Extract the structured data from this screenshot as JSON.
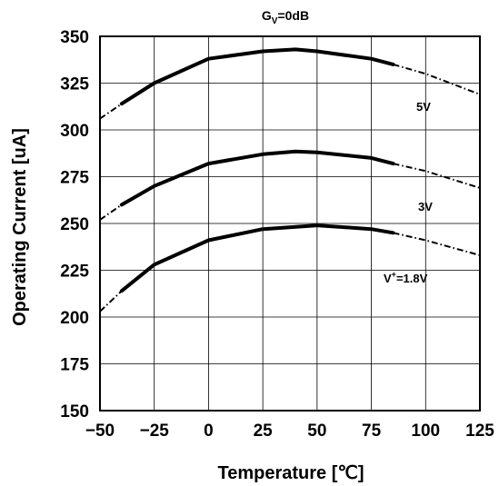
{
  "chart_data": {
    "type": "line",
    "title_main": "G",
    "title_sub": "V",
    "title_rest": "=0dB",
    "xlabel": "Temperature [℃]",
    "ylabel": "Operating Current [uA]",
    "xlim": [
      -50,
      125
    ],
    "ylim": [
      150,
      350
    ],
    "xticks": [
      -50,
      -25,
      0,
      25,
      50,
      75,
      100,
      125
    ],
    "yticks": [
      150,
      175,
      200,
      225,
      250,
      275,
      300,
      325,
      350
    ],
    "grid": true,
    "series": [
      {
        "name": "5V",
        "x": [
          -50,
          -40,
          -25,
          0,
          25,
          40,
          50,
          75,
          85,
          100,
          125
        ],
        "y": [
          306,
          314,
          325,
          338,
          342,
          343,
          342,
          338,
          335,
          330,
          319
        ],
        "measured_range": [
          -40,
          85
        ]
      },
      {
        "name": "3V",
        "x": [
          -50,
          -40,
          -25,
          0,
          25,
          40,
          50,
          75,
          85,
          100,
          125
        ],
        "y": [
          252,
          260,
          270,
          282,
          287,
          288.5,
          288,
          285,
          282,
          278,
          269
        ],
        "measured_range": [
          -40,
          85
        ]
      },
      {
        "name": "V",
        "label_sup": "+",
        "label_rest": "=1.8V",
        "x": [
          -50,
          -40,
          -25,
          0,
          25,
          50,
          75,
          85,
          100,
          125
        ],
        "y": [
          203,
          214,
          228,
          241,
          247,
          249,
          247,
          245,
          241,
          233
        ],
        "measured_range": [
          -40,
          85
        ]
      }
    ]
  }
}
